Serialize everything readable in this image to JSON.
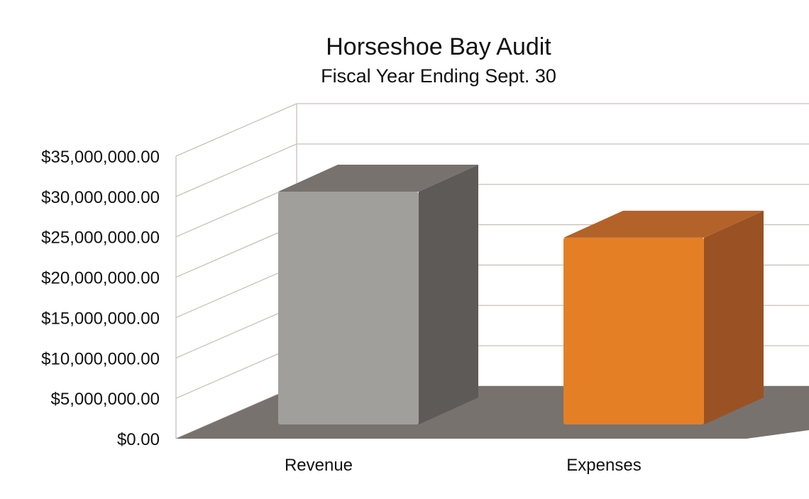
{
  "chart_data": {
    "type": "bar",
    "title": "Horseshoe Bay Audit",
    "subtitle": "Fiscal Year Ending Sept. 30",
    "categories": [
      "Revenue",
      "Expenses"
    ],
    "values": [
      30600000,
      24900000
    ],
    "colors": [
      "#a19f9c",
      "#e47f26"
    ],
    "side_colors": [
      "#5e5a57",
      "#9a5224"
    ],
    "top_colors": [
      "#77726e",
      "#b3622a"
    ],
    "ylim": [
      0,
      35000000
    ],
    "y_ticks": [
      {
        "value": 0,
        "label": "$0.00"
      },
      {
        "value": 5000000,
        "label": "$5,000,000.00"
      },
      {
        "value": 10000000,
        "label": "$10,000,000.00"
      },
      {
        "value": 15000000,
        "label": "$15,000,000.00"
      },
      {
        "value": 20000000,
        "label": "$20,000,000.00"
      },
      {
        "value": 25000000,
        "label": "$25,000,000.00"
      },
      {
        "value": 30000000,
        "label": "$30,000,000.00"
      },
      {
        "value": 35000000,
        "label": "$35,000,000.00"
      }
    ],
    "xlabel": "",
    "ylabel": "",
    "grid": true,
    "style": "3d-column",
    "floor_color": "#77726e",
    "grid_color": "#c9c0ba"
  }
}
